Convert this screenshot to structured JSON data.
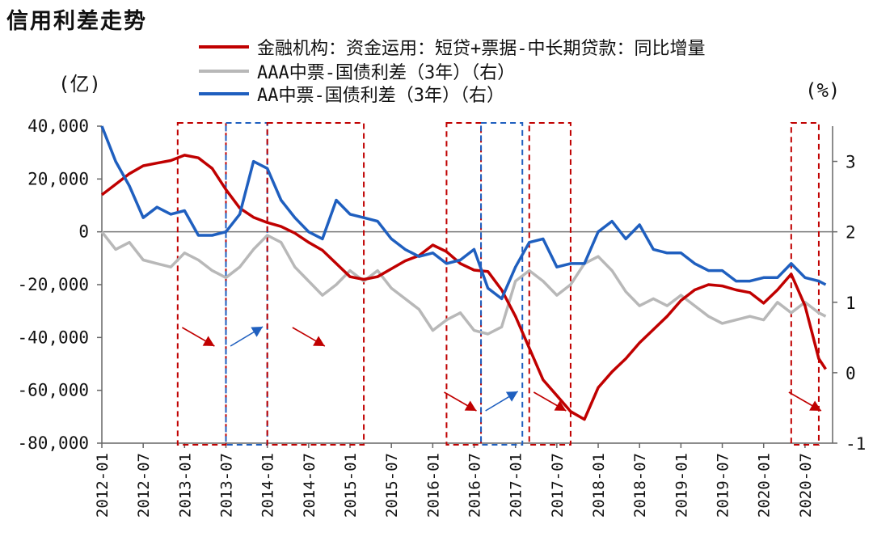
{
  "chart_data": {
    "type": "line",
    "title": "信用利差走势",
    "left_unit": "(亿)",
    "right_unit": "(%)",
    "x_tick_labels": [
      "2012-01",
      "2012-07",
      "2013-01",
      "2013-07",
      "2014-01",
      "2014-07",
      "2015-01",
      "2015-07",
      "2016-01",
      "2016-07",
      "2017-01",
      "2017-07",
      "2018-01",
      "2018-07",
      "2019-01",
      "2019-07",
      "2020-01",
      "2020-07"
    ],
    "left_axis": {
      "ylim": [
        -80000,
        40000
      ],
      "ticks": [
        40000,
        20000,
        0,
        -20000,
        -40000,
        -60000,
        -80000
      ],
      "tick_labels": [
        "40,000",
        "20,000",
        "0",
        "-20,000",
        "-40,000",
        "-60,000",
        "-80,000"
      ]
    },
    "right_axis": {
      "ylim": [
        -1,
        3.5
      ],
      "ticks": [
        3,
        2,
        1,
        0,
        -1
      ],
      "tick_labels": [
        "3",
        "2",
        "1",
        "0",
        "-1"
      ]
    },
    "zero_line": true,
    "series": [
      {
        "name": "金融机构：资金运用：短贷+票据-中长期贷款：同比增量",
        "axis": "left",
        "color": "#c00000",
        "x": [
          "2012-01",
          "2012-03",
          "2012-05",
          "2012-07",
          "2012-09",
          "2012-11",
          "2013-01",
          "2013-03",
          "2013-05",
          "2013-07",
          "2013-09",
          "2013-11",
          "2014-01",
          "2014-03",
          "2014-05",
          "2014-07",
          "2014-09",
          "2014-11",
          "2015-01",
          "2015-03",
          "2015-05",
          "2015-07",
          "2015-09",
          "2015-11",
          "2016-01",
          "2016-03",
          "2016-05",
          "2016-07",
          "2016-09",
          "2016-11",
          "2017-01",
          "2017-03",
          "2017-05",
          "2017-07",
          "2017-09",
          "2017-11",
          "2018-01",
          "2018-03",
          "2018-05",
          "2018-07",
          "2018-09",
          "2018-11",
          "2019-01",
          "2019-03",
          "2019-05",
          "2019-07",
          "2019-09",
          "2019-11",
          "2020-01",
          "2020-03",
          "2020-05",
          "2020-07",
          "2020-09",
          "2020-10"
        ],
        "values": [
          14000,
          18000,
          22000,
          25000,
          26000,
          27000,
          29000,
          28000,
          24000,
          16000,
          9000,
          5500,
          3500,
          2000,
          -500,
          -4000,
          -7000,
          -12000,
          -17000,
          -18000,
          -17000,
          -14000,
          -11000,
          -9000,
          -5000,
          -7500,
          -12000,
          -14500,
          -15000,
          -22000,
          -32000,
          -44000,
          -56000,
          -62000,
          -68000,
          -71000,
          -59000,
          -53000,
          -48000,
          -42000,
          -37000,
          -32000,
          -26000,
          -22000,
          -20000,
          -20500,
          -22000,
          -23000,
          -27000,
          -22000,
          -16000,
          -28000,
          -48000,
          -52000
        ]
      },
      {
        "name": "AAA中票-国债利差（3年）（右）",
        "axis": "right",
        "color": "#b8b8b8",
        "x": [
          "2012-01",
          "2012-03",
          "2012-05",
          "2012-07",
          "2012-09",
          "2012-11",
          "2013-01",
          "2013-03",
          "2013-05",
          "2013-07",
          "2013-09",
          "2013-11",
          "2014-01",
          "2014-03",
          "2014-05",
          "2014-07",
          "2014-09",
          "2014-11",
          "2015-01",
          "2015-03",
          "2015-05",
          "2015-07",
          "2015-09",
          "2015-11",
          "2016-01",
          "2016-03",
          "2016-05",
          "2016-07",
          "2016-09",
          "2016-11",
          "2017-01",
          "2017-03",
          "2017-05",
          "2017-07",
          "2017-09",
          "2017-11",
          "2018-01",
          "2018-03",
          "2018-05",
          "2018-07",
          "2018-09",
          "2018-11",
          "2019-01",
          "2019-03",
          "2019-05",
          "2019-07",
          "2019-09",
          "2019-11",
          "2020-01",
          "2020-03",
          "2020-05",
          "2020-07",
          "2020-09",
          "2020-10"
        ],
        "values": [
          2.0,
          1.75,
          1.85,
          1.6,
          1.55,
          1.5,
          1.7,
          1.6,
          1.45,
          1.35,
          1.5,
          1.75,
          1.95,
          1.85,
          1.5,
          1.3,
          1.1,
          1.25,
          1.45,
          1.3,
          1.45,
          1.2,
          1.05,
          0.9,
          0.6,
          0.75,
          0.85,
          0.6,
          0.55,
          0.65,
          1.3,
          1.45,
          1.3,
          1.1,
          1.25,
          1.55,
          1.65,
          1.45,
          1.15,
          0.95,
          1.05,
          0.95,
          1.1,
          0.95,
          0.8,
          0.7,
          0.75,
          0.8,
          0.75,
          1.0,
          0.85,
          1.0,
          0.85,
          0.8
        ]
      },
      {
        "name": "AA中票-国债利差（3年）（右）",
        "axis": "right",
        "color": "#1f5fbf",
        "x": [
          "2012-01",
          "2012-03",
          "2012-05",
          "2012-07",
          "2012-09",
          "2012-11",
          "2013-01",
          "2013-03",
          "2013-05",
          "2013-07",
          "2013-09",
          "2013-11",
          "2014-01",
          "2014-03",
          "2014-05",
          "2014-07",
          "2014-09",
          "2014-11",
          "2015-01",
          "2015-03",
          "2015-05",
          "2015-07",
          "2015-09",
          "2015-11",
          "2016-01",
          "2016-03",
          "2016-05",
          "2016-07",
          "2016-09",
          "2016-11",
          "2017-01",
          "2017-03",
          "2017-05",
          "2017-07",
          "2017-09",
          "2017-11",
          "2018-01",
          "2018-03",
          "2018-05",
          "2018-07",
          "2018-09",
          "2018-11",
          "2019-01",
          "2019-03",
          "2019-05",
          "2019-07",
          "2019-09",
          "2019-11",
          "2020-01",
          "2020-03",
          "2020-05",
          "2020-07",
          "2020-09",
          "2020-10"
        ],
        "values": [
          3.5,
          3.0,
          2.65,
          2.2,
          2.35,
          2.25,
          2.3,
          1.95,
          1.95,
          2.0,
          2.25,
          3.0,
          2.9,
          2.45,
          2.2,
          2.0,
          1.9,
          2.45,
          2.25,
          2.2,
          2.15,
          1.9,
          1.75,
          1.65,
          1.7,
          1.55,
          1.6,
          1.75,
          1.2,
          1.05,
          1.5,
          1.85,
          1.9,
          1.5,
          1.55,
          1.55,
          2.0,
          2.15,
          1.9,
          2.1,
          1.75,
          1.7,
          1.7,
          1.55,
          1.45,
          1.45,
          1.3,
          1.3,
          1.35,
          1.35,
          1.55,
          1.35,
          1.3,
          1.25
        ]
      }
    ],
    "annotations": [
      {
        "type": "dashed-box",
        "color": "#c00000",
        "x_start": "2012-12",
        "x_end": "2013-07"
      },
      {
        "type": "dashed-box",
        "color": "#1f5fbf",
        "x_start": "2013-07",
        "x_end": "2014-01"
      },
      {
        "type": "dashed-box",
        "color": "#c00000",
        "x_start": "2014-01",
        "x_end": "2015-03"
      },
      {
        "type": "dashed-box",
        "color": "#c00000",
        "x_start": "2016-03",
        "x_end": "2016-08"
      },
      {
        "type": "dashed-box",
        "color": "#1f5fbf",
        "x_start": "2016-08",
        "x_end": "2017-02"
      },
      {
        "type": "dashed-box",
        "color": "#c00000",
        "x_start": "2017-03",
        "x_end": "2017-09"
      },
      {
        "type": "dashed-box",
        "color": "#c00000",
        "x_start": "2020-05",
        "x_end": "2020-09"
      },
      {
        "type": "arrow",
        "color": "#c00000",
        "direction": "down-right",
        "x": "2013-03"
      },
      {
        "type": "arrow",
        "color": "#1f5fbf",
        "direction": "up-right",
        "x": "2013-10"
      },
      {
        "type": "arrow",
        "color": "#c00000",
        "direction": "down-right",
        "x": "2014-07"
      },
      {
        "type": "arrow",
        "color": "#c00000",
        "direction": "down-right",
        "x": "2016-05"
      },
      {
        "type": "arrow",
        "color": "#1f5fbf",
        "direction": "up-right",
        "x": "2016-11"
      },
      {
        "type": "arrow",
        "color": "#c00000",
        "direction": "down-right",
        "x": "2017-06"
      },
      {
        "type": "arrow",
        "color": "#c00000",
        "direction": "down-right",
        "x": "2020-07"
      }
    ]
  }
}
